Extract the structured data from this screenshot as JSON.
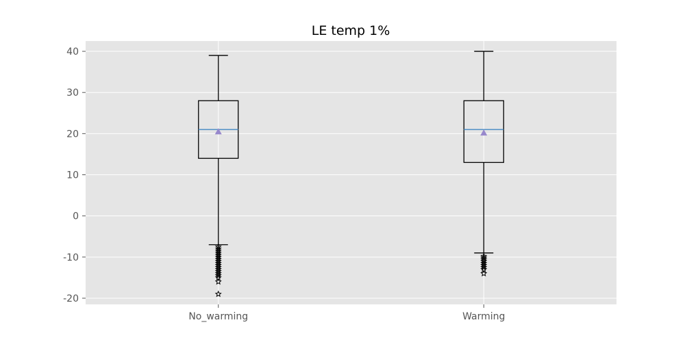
{
  "chart_data": {
    "type": "box",
    "title": "LE temp 1%",
    "xlabel": "",
    "ylabel": "",
    "ylim": [
      -21.5,
      42.5
    ],
    "yticks": [
      40,
      30,
      20,
      10,
      0,
      -10,
      -20
    ],
    "grid": true,
    "categories": [
      "No_warming",
      "Warming"
    ],
    "boxes": [
      {
        "category": "No_warming",
        "whisker_low": -7,
        "q1": 14,
        "median": 21,
        "mean": 20.5,
        "q3": 28,
        "whisker_high": 39,
        "outliers": [
          -7.5,
          -8,
          -8.5,
          -9,
          -9.5,
          -10,
          -10.5,
          -11,
          -11.5,
          -12,
          -12.5,
          -13,
          -13.5,
          -14,
          -14.5,
          -15,
          -16,
          -19
        ]
      },
      {
        "category": "Warming",
        "whisker_low": -9,
        "q1": 13,
        "median": 21,
        "mean": 20.2,
        "q3": 28,
        "whisker_high": 40,
        "outliers": [
          -9.8,
          -10.2,
          -10.6,
          -11,
          -11.5,
          -12,
          -12.5,
          -13,
          -14
        ]
      }
    ],
    "colors": {
      "plot_background": "#e5e5e5",
      "grid": "#ffffff",
      "box": "#000000",
      "median": "#4c8ec5",
      "mean_marker": "#9788cc",
      "outlier": "#000000"
    },
    "markers": {
      "mean": "triangle",
      "outlier": "star"
    }
  }
}
